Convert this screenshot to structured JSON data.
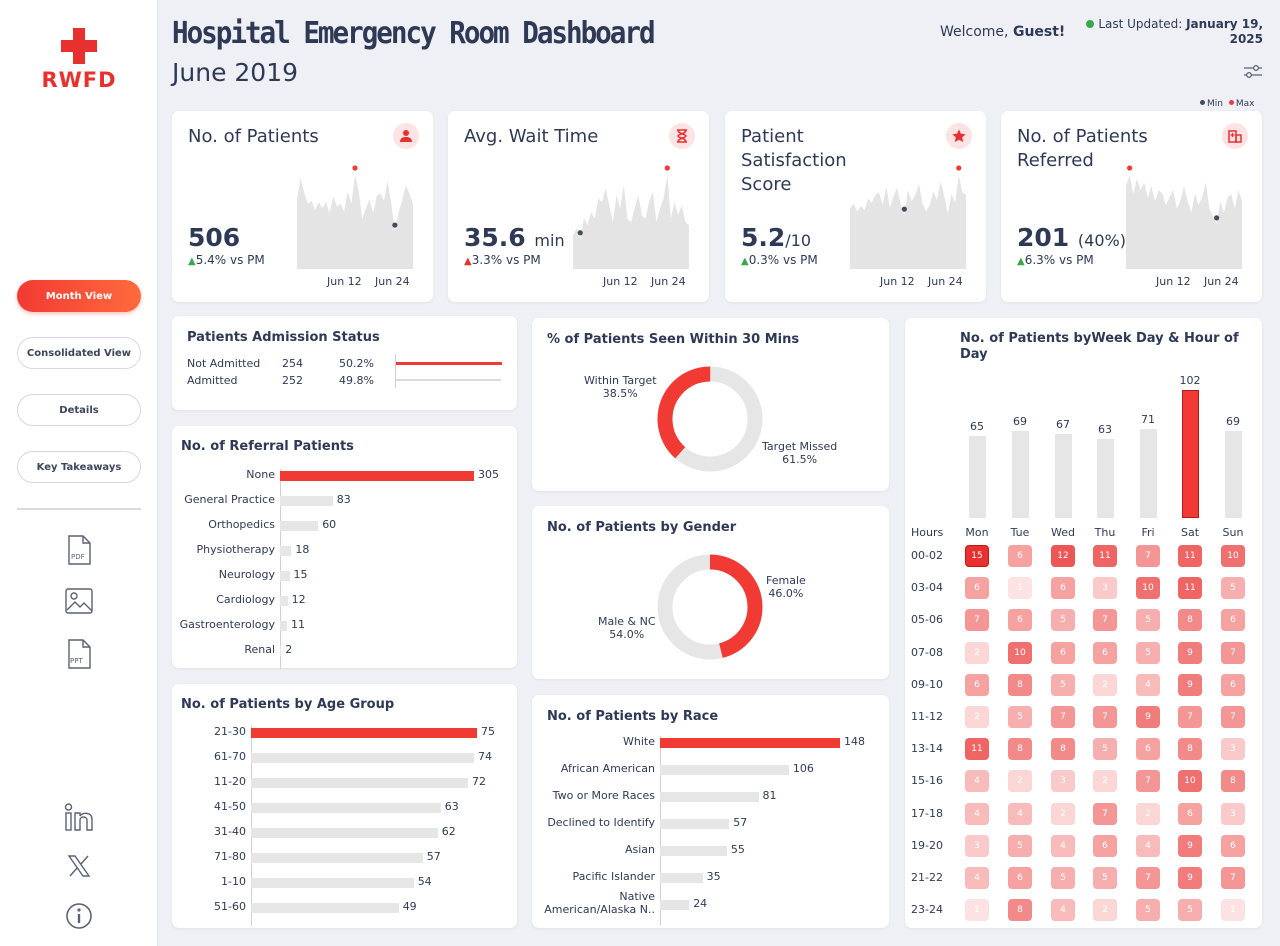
{
  "sidebar": {
    "logo": "RWFD",
    "nav": [
      "Month View",
      "Consolidated View",
      "Details",
      "Key Takeaways"
    ],
    "exports": [
      "pdf-icon",
      "image-icon",
      "ppt-icon"
    ],
    "socials": [
      "linkedin-icon",
      "x-icon",
      "info-icon"
    ]
  },
  "header": {
    "title": "Hospital Emergency Room Dashboard",
    "subtitle": "June 2019",
    "welcome_prefix": "Welcome,",
    "welcome_user": "Guest!",
    "updated_label": "Last Updated:",
    "updated_date": "January 19, 2025",
    "legend_min": "Min",
    "legend_max": "Max"
  },
  "colors": {
    "accent": "#f03a33",
    "text": "#2e3a55",
    "muted": "#e6e6e6",
    "green": "#3aa84a"
  },
  "kpis": [
    {
      "title": "No. of Patients",
      "value": "506",
      "unit": "",
      "extra": "",
      "delta": "5.4% vs PM",
      "trend": "up-green",
      "icon": "person-icon",
      "x_ticks": [
        "Jun 12",
        "Jun 24"
      ],
      "series": [
        46,
        60,
        50,
        43,
        45,
        39,
        44,
        40,
        44,
        37,
        48,
        41,
        43,
        38,
        51,
        43,
        62,
        52,
        33,
        40,
        46,
        37,
        48,
        50,
        45,
        58,
        43,
        25,
        37,
        45,
        55,
        50,
        43
      ]
    },
    {
      "title": "Avg. Wait Time",
      "value": "35.6",
      "unit": "min",
      "extra": "",
      "delta": "3.3% vs PM",
      "trend": "up-red",
      "icon": "hourglass-icon",
      "x_ticks": [
        "Jun 12",
        "Jun 24"
      ],
      "series": [
        20,
        24,
        18,
        30,
        26,
        34,
        30,
        42,
        40,
        48,
        38,
        28,
        44,
        36,
        50,
        30,
        28,
        36,
        44,
        32,
        30,
        40,
        46,
        28,
        36,
        42,
        56,
        30,
        40,
        32,
        38,
        28,
        26
      ]
    },
    {
      "title": "Patient Satisfaction Score",
      "value": "5.2",
      "unit": "/10",
      "extra": "",
      "delta": "0.3% vs PM",
      "trend": "up-green",
      "icon": "star-icon",
      "x_ticks": [
        "Jun 12",
        "Jun 24"
      ],
      "series": [
        4.8,
        5.2,
        4.6,
        5.0,
        4.7,
        5.6,
        5.3,
        5.9,
        6.1,
        5.1,
        6.6,
        4.9,
        5.8,
        6.5,
        5.1,
        4.3,
        6.3,
        5.4,
        5.9,
        6.8,
        5.2,
        4.6,
        5.1,
        6.2,
        5.5,
        7.0,
        5.8,
        4.4,
        6.0,
        5.3,
        7.5,
        6.1,
        5.9
      ]
    },
    {
      "title": "No. of Patients Referred",
      "value": "201",
      "unit": "",
      "extra": "(40%)",
      "delta": "6.3% vs PM",
      "trend": "up-green",
      "icon": "hospital-icon",
      "x_ticks": [
        "Jun 12",
        "Jun 24"
      ],
      "series": [
        22,
        25,
        20,
        24,
        21,
        23,
        19,
        22,
        18,
        21,
        20,
        17,
        19,
        21,
        16,
        18,
        22,
        18,
        15,
        20,
        17,
        19,
        23,
        16,
        14,
        12,
        18,
        15,
        19,
        20,
        16,
        21,
        18
      ]
    }
  ],
  "admission": {
    "title": "Patients Admission Status",
    "rows": [
      {
        "label": "Not Admitted",
        "count": "254",
        "pct": "50.2%",
        "value": 50.2
      },
      {
        "label": "Admitted",
        "count": "252",
        "pct": "49.8%",
        "value": 49.8
      }
    ]
  },
  "referral": {
    "title": "No. of Referral Patients",
    "chart_data": {
      "type": "bar",
      "title": "No. of Referral Patients",
      "categories": [
        "None",
        "General Practice",
        "Orthopedics",
        "Physiotherapy",
        "Neurology",
        "Cardiology",
        "Gastroenterology",
        "Renal"
      ],
      "values": [
        305,
        83,
        60,
        18,
        15,
        12,
        11,
        2
      ]
    }
  },
  "age": {
    "title": "No. of Patients by Age Group",
    "chart_data": {
      "type": "bar",
      "title": "No. of Patients by Age Group",
      "categories": [
        "21-30",
        "61-70",
        "11-20",
        "41-50",
        "31-40",
        "71-80",
        "1-10",
        "51-60"
      ],
      "values": [
        75,
        74,
        72,
        63,
        62,
        57,
        54,
        49
      ]
    }
  },
  "seen30": {
    "title": "% of Patients Seen Within 30 Mins",
    "chart_data": {
      "type": "pie",
      "title": "% of Patients Seen Within 30 Mins",
      "categories": [
        "Within Target",
        "Target Missed"
      ],
      "values": [
        38.5,
        61.5
      ],
      "labels": [
        "38.5%",
        "61.5%"
      ]
    }
  },
  "gender": {
    "title": "No. of Patients by Gender",
    "chart_data": {
      "type": "pie",
      "title": "No. of Patients by Gender",
      "categories": [
        "Female",
        "Male & NC"
      ],
      "values": [
        46.0,
        54.0
      ],
      "labels": [
        "46.0%",
        "54.0%"
      ]
    }
  },
  "race": {
    "title": "No. of Patients by Race",
    "chart_data": {
      "type": "bar",
      "title": "No. of Patients by Race",
      "categories": [
        "White",
        "African American",
        "Two or More Races",
        "Declined to Identify",
        "Asian",
        "Pacific Islander",
        "Native American/Alaska N.."
      ],
      "values": [
        148,
        106,
        81,
        57,
        55,
        35,
        24
      ]
    }
  },
  "weekday": {
    "title": "No. of Patients byWeek Day & Hour of Day",
    "hours_label": "Hours",
    "chart_data": {
      "type": "heatmap",
      "title": "No. of Patients byWeek Day & Hour of Day",
      "days": [
        "Mon",
        "Tue",
        "Wed",
        "Thu",
        "Fri",
        "Sat",
        "Sun"
      ],
      "day_totals": [
        65,
        69,
        67,
        63,
        71,
        102,
        69
      ],
      "hours": [
        "00-02",
        "03-04",
        "05-06",
        "07-08",
        "09-10",
        "11-12",
        "13-14",
        "15-16",
        "17-18",
        "19-20",
        "21-22",
        "23-24"
      ],
      "matrix": [
        [
          15,
          6,
          12,
          11,
          7,
          11,
          10
        ],
        [
          6,
          1,
          6,
          3,
          10,
          11,
          5
        ],
        [
          7,
          6,
          5,
          7,
          5,
          8,
          6
        ],
        [
          2,
          10,
          6,
          6,
          5,
          9,
          7
        ],
        [
          6,
          8,
          5,
          2,
          4,
          9,
          6
        ],
        [
          2,
          5,
          7,
          7,
          9,
          7,
          7
        ],
        [
          11,
          8,
          8,
          5,
          6,
          8,
          3
        ],
        [
          4,
          2,
          3,
          2,
          7,
          10,
          8
        ],
        [
          4,
          4,
          2,
          7,
          2,
          6,
          3
        ],
        [
          3,
          5,
          4,
          6,
          4,
          9,
          6
        ],
        [
          4,
          6,
          5,
          5,
          7,
          9,
          7
        ],
        [
          1,
          8,
          4,
          2,
          5,
          5,
          1
        ]
      ]
    }
  }
}
